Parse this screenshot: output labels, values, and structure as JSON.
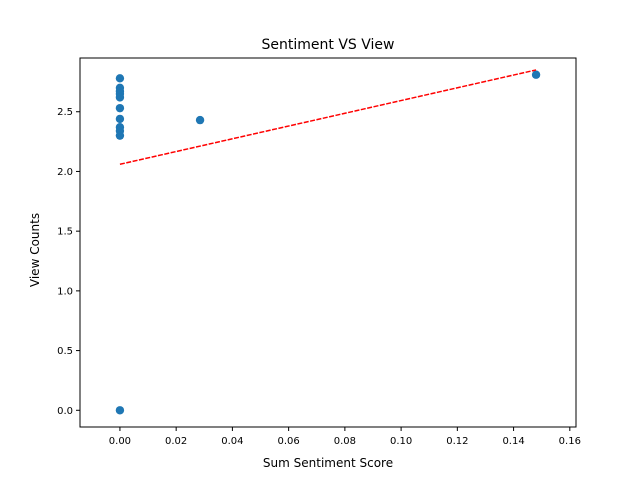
{
  "chart_data": {
    "type": "scatter",
    "title": "Sentiment VS View",
    "xlabel": "Sum Sentiment Score",
    "ylabel": "View Counts",
    "xlim": [
      -0.0142,
      0.1622
    ],
    "ylim": [
      -0.14,
      2.95
    ],
    "xticks": [
      0.0,
      0.02,
      0.04,
      0.06,
      0.08,
      0.1,
      0.12,
      0.14,
      0.16
    ],
    "xtick_labels": [
      "0.00",
      "0.02",
      "0.04",
      "0.06",
      "0.08",
      "0.10",
      "0.12",
      "0.14",
      "0.16"
    ],
    "yticks": [
      0.0,
      0.5,
      1.0,
      1.5,
      2.0,
      2.5
    ],
    "ytick_labels": [
      "0.0",
      "0.5",
      "1.0",
      "1.5",
      "2.0",
      "2.5"
    ],
    "grid": false,
    "legend": "none",
    "series": [
      {
        "kind": "points",
        "color": "#1f77b4",
        "points": [
          {
            "x": 0.0,
            "y": 2.78
          },
          {
            "x": 0.0,
            "y": 2.7
          },
          {
            "x": 0.0,
            "y": 2.67
          },
          {
            "x": 0.0,
            "y": 2.65
          },
          {
            "x": 0.0,
            "y": 2.62
          },
          {
            "x": 0.0,
            "y": 2.53
          },
          {
            "x": 0.0,
            "y": 2.44
          },
          {
            "x": 0.0,
            "y": 2.37
          },
          {
            "x": 0.0,
            "y": 2.34
          },
          {
            "x": 0.0,
            "y": 2.3
          },
          {
            "x": 0.0,
            "y": 0.0
          },
          {
            "x": 0.0285,
            "y": 2.43
          },
          {
            "x": 0.148,
            "y": 2.81
          }
        ]
      },
      {
        "kind": "trend-line",
        "color": "#ff0000",
        "style": "dashed",
        "points": [
          {
            "x": 0.0,
            "y": 2.06
          },
          {
            "x": 0.148,
            "y": 2.85
          }
        ]
      }
    ]
  }
}
